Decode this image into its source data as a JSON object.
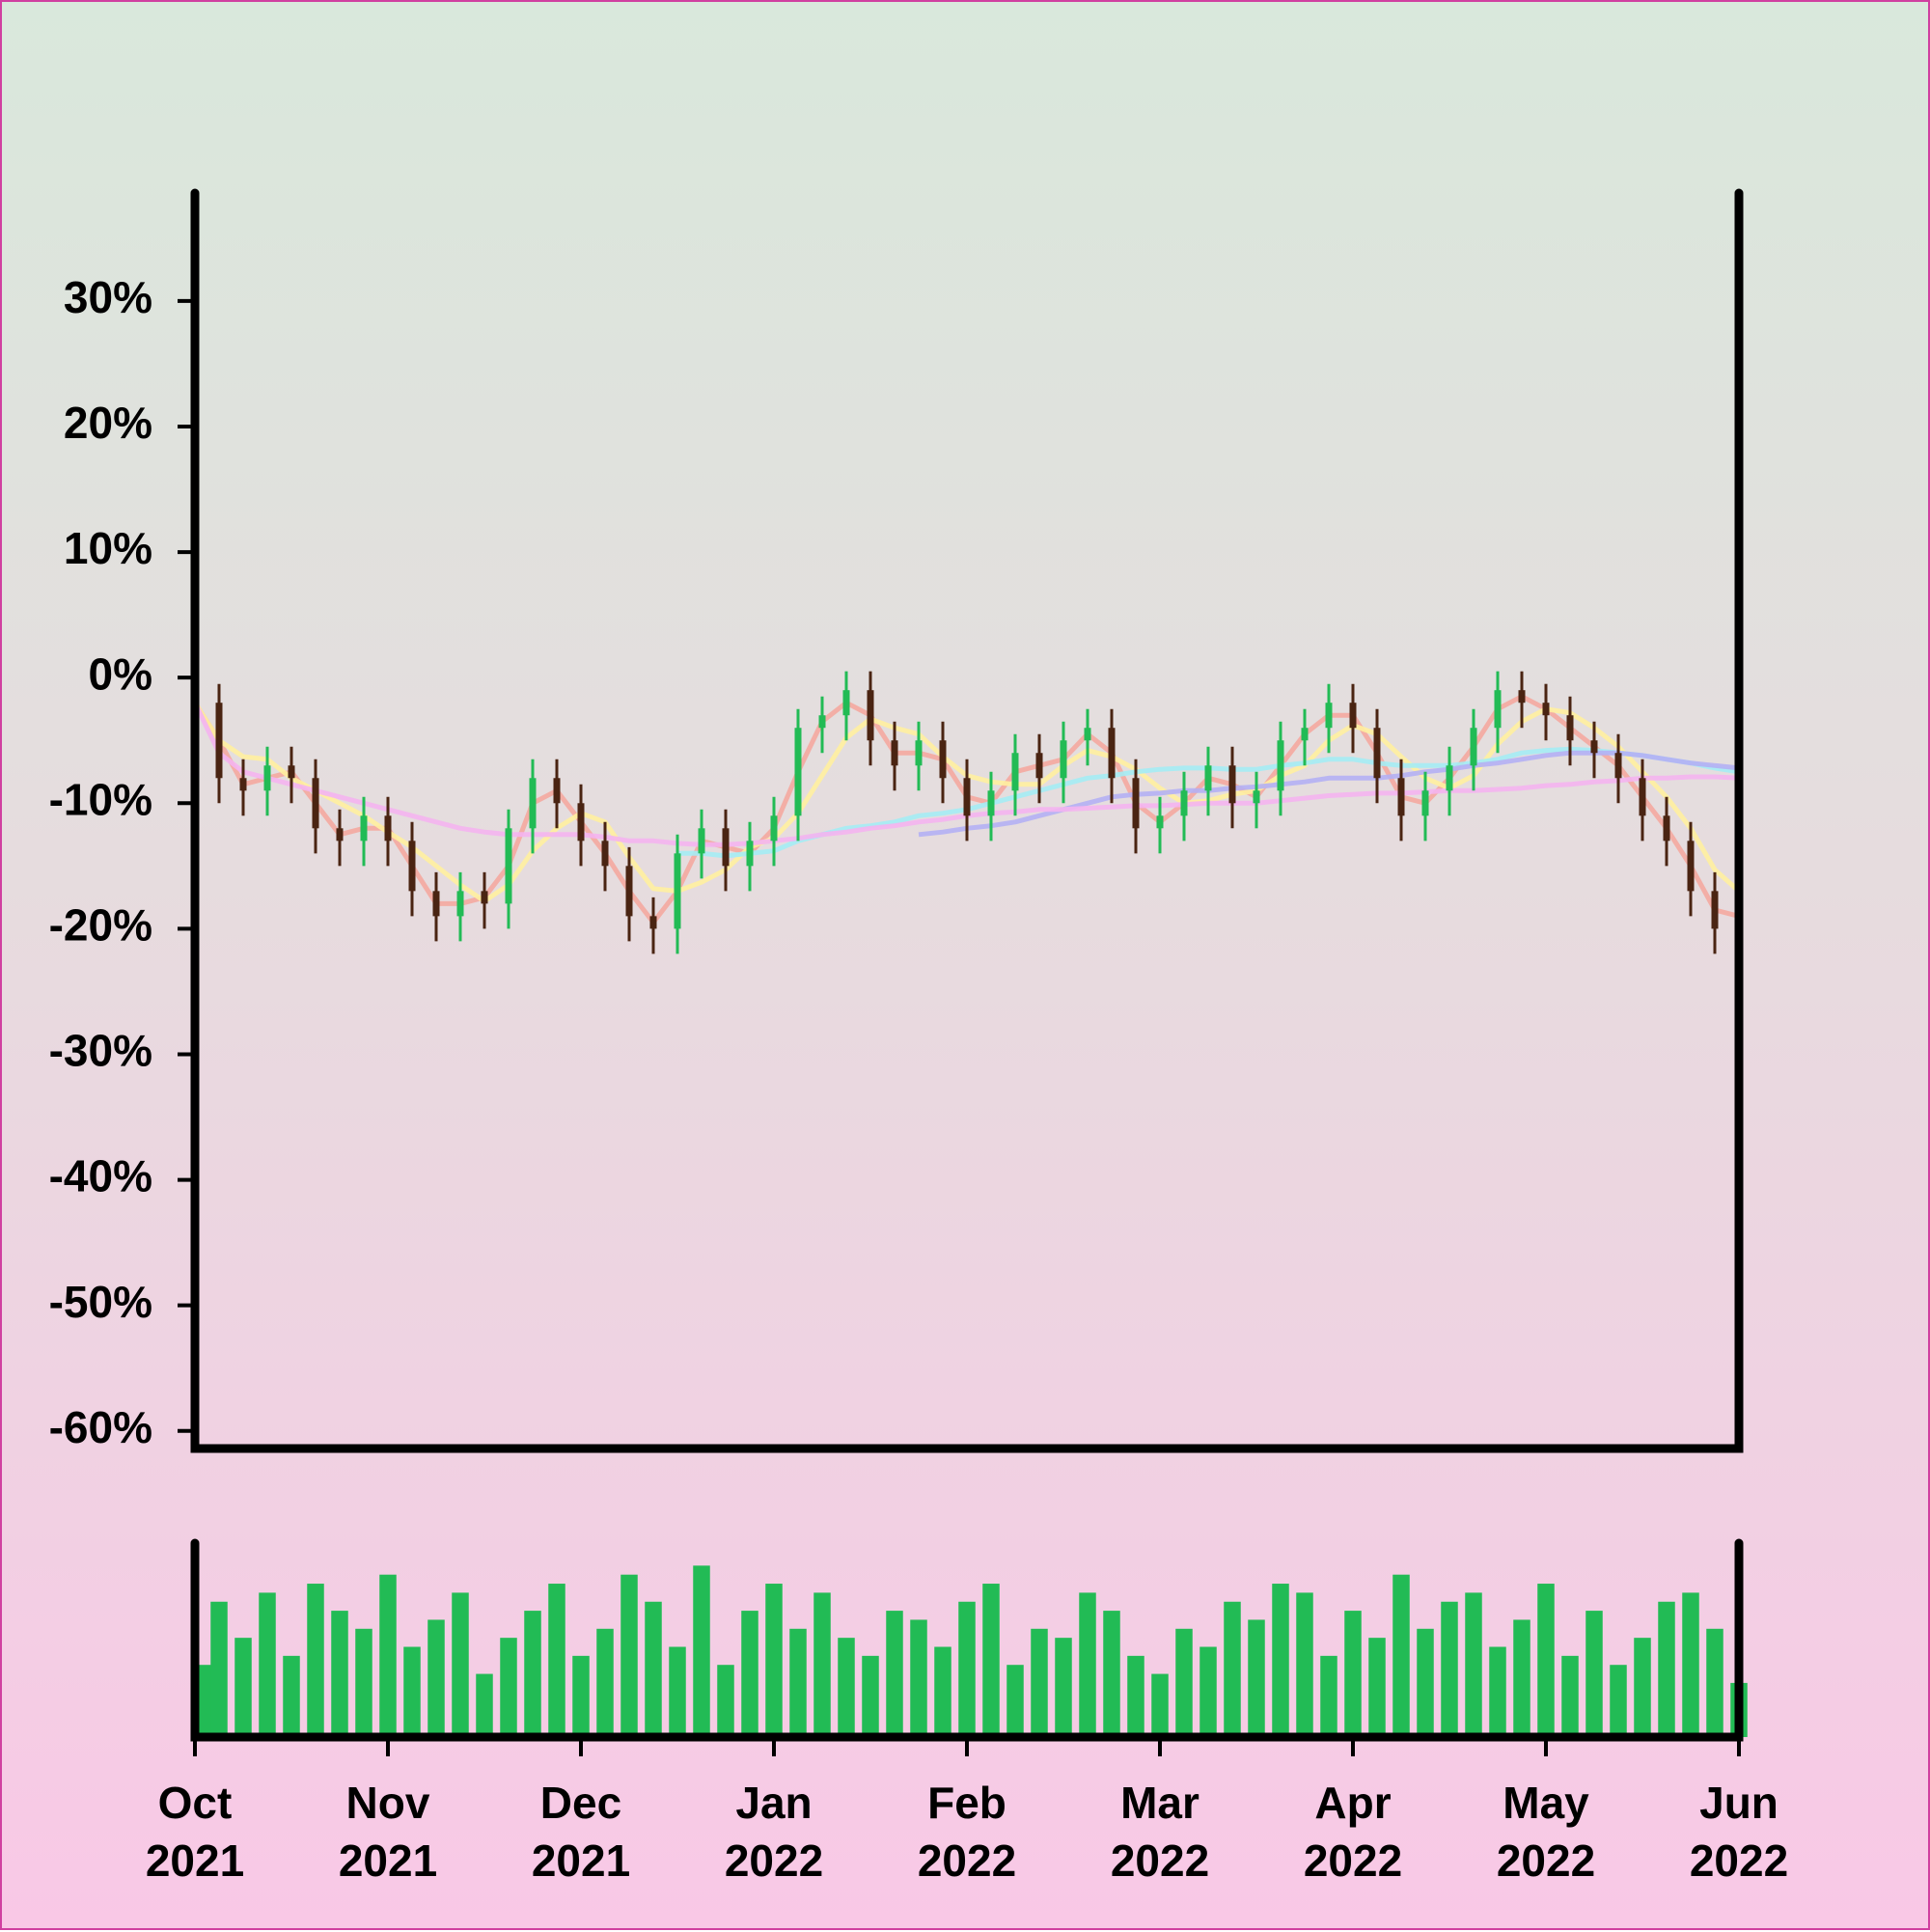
{
  "chart_data": {
    "type": "candlestick",
    "categories": [
      "Oct\n2021",
      null,
      null,
      null,
      null,
      null,
      null,
      null,
      "Nov\n2021",
      null,
      null,
      null,
      null,
      null,
      null,
      null,
      "Dec\n2021",
      null,
      null,
      null,
      null,
      null,
      null,
      null,
      "Jan\n2022",
      null,
      null,
      null,
      null,
      null,
      null,
      null,
      "Feb\n2022",
      null,
      null,
      null,
      null,
      null,
      null,
      null,
      "Mar\n2022",
      null,
      null,
      null,
      null,
      null,
      null,
      null,
      "Apr\n2022",
      null,
      null,
      null,
      null,
      null,
      null,
      null,
      "May\n2022",
      null,
      null,
      null,
      null,
      null,
      null,
      null,
      "Jun\n2022"
    ],
    "open": [
      -1,
      -2,
      -8,
      -9,
      -7,
      -8,
      -12,
      -13,
      -11,
      -13,
      -17,
      -19,
      -17,
      -18,
      -12,
      -8,
      -10,
      -13,
      -15,
      -19,
      -20,
      -14,
      -12,
      -15,
      -13,
      -11,
      -4,
      -3,
      -1,
      -5,
      -7,
      -5,
      -8,
      -11,
      -9,
      -6,
      -8,
      -5,
      -4,
      -8,
      -12,
      -11,
      -9,
      -7,
      -10,
      -9,
      -5,
      -4,
      -2,
      -4,
      -8,
      -11,
      -9,
      -7,
      -4,
      -1,
      -2,
      -3,
      -5,
      -6,
      -8,
      -11,
      -13,
      -17,
      -20
    ],
    "high": [
      0.5,
      -0.5,
      -6.5,
      -5.5,
      -5.5,
      -6.5,
      -10.5,
      -9.5,
      -9.5,
      -11.5,
      -15.5,
      -15.5,
      -15.5,
      -10.5,
      -6.5,
      -6.5,
      -8.5,
      -11.5,
      -13.5,
      -17.5,
      -12.5,
      -10.5,
      -10.5,
      -11.5,
      -9.5,
      -2.5,
      -1.5,
      0.5,
      0.5,
      -3.5,
      -3.5,
      -3.5,
      -6.5,
      -7.5,
      -4.5,
      -4.5,
      -3.5,
      -2.5,
      -2.5,
      -6.5,
      -9.5,
      -7.5,
      -5.5,
      -5.5,
      -7.5,
      -3.5,
      -2.5,
      -0.5,
      -0.5,
      -2.5,
      -6.5,
      -7.5,
      -5.5,
      -2.5,
      0.5,
      0.5,
      -0.5,
      -1.5,
      -3.5,
      -4.5,
      -6.5,
      -9.5,
      -11.5,
      -15.5,
      -16.5
    ],
    "low": [
      -4,
      -10,
      -11,
      -11,
      -10,
      -14,
      -15,
      -15,
      -15,
      -19,
      -21,
      -21,
      -20,
      -20,
      -14,
      -12,
      -15,
      -17,
      -21,
      -22,
      -22,
      -16,
      -17,
      -17,
      -15,
      -13,
      -6,
      -5,
      -7,
      -9,
      -9,
      -10,
      -13,
      -13,
      -11,
      -10,
      -10,
      -7,
      -10,
      -14,
      -14,
      -13,
      -11,
      -12,
      -12,
      -11,
      -7,
      -6,
      -6,
      -10,
      -13,
      -13,
      -11,
      -9,
      -6,
      -4,
      -5,
      -7,
      -8,
      -10,
      -13,
      -15,
      -19,
      -22,
      -22
    ],
    "close": [
      -2,
      -8,
      -9,
      -7,
      -8,
      -12,
      -13,
      -11,
      -13,
      -17,
      -19,
      -17,
      -18,
      -12,
      -8,
      -10,
      -13,
      -15,
      -19,
      -20,
      -14,
      -12,
      -15,
      -13,
      -11,
      -4,
      -3,
      -1,
      -5,
      -7,
      -5,
      -8,
      -11,
      -9,
      -6,
      -8,
      -5,
      -4,
      -8,
      -12,
      -11,
      -9,
      -7,
      -10,
      -9,
      -5,
      -4,
      -2,
      -4,
      -8,
      -11,
      -9,
      -7,
      -4,
      -1,
      -2,
      -3,
      -5,
      -6,
      -8,
      -11,
      -13,
      -17,
      -20,
      -18
    ],
    "up_color": "#22bb55",
    "down_color": "#4a2412",
    "moving_averages": [
      {
        "color": "#f4a8a0",
        "values": [
          -2,
          -5,
          -8.5,
          -8,
          -7.5,
          -10,
          -12.5,
          -12,
          -12,
          -15,
          -18,
          -18,
          -17.5,
          -15,
          -10,
          -9,
          -11.5,
          -14,
          -17,
          -19.5,
          -17,
          -13,
          -13.5,
          -14,
          -12,
          -7.5,
          -3.5,
          -2,
          -3,
          -6,
          -6,
          -6.5,
          -9.5,
          -10,
          -7.5,
          -7,
          -6.5,
          -4.5,
          -6,
          -10,
          -11.5,
          -10,
          -8,
          -8.5,
          -9.5,
          -7,
          -4.5,
          -3,
          -3,
          -6,
          -9.5,
          -10,
          -8,
          -5.5,
          -2.5,
          -1.5,
          -2.5,
          -4,
          -5.5,
          -7,
          -9.5,
          -12,
          -15,
          -18.5,
          -19
        ]
      },
      {
        "color": "#fff0a0",
        "values": [
          -2,
          -5,
          -6.3,
          -6.5,
          -8,
          -9,
          -10,
          -11,
          -12.3,
          -13.5,
          -15,
          -16.5,
          -17.8,
          -16.5,
          -13.8,
          -12,
          -10.8,
          -11.5,
          -14.3,
          -16.8,
          -17,
          -16.3,
          -15.3,
          -13.5,
          -12.8,
          -10.8,
          -7.8,
          -4.8,
          -3.3,
          -4,
          -4.5,
          -6.3,
          -7.8,
          -8.3,
          -8.5,
          -8.5,
          -7,
          -5.8,
          -6.3,
          -7.3,
          -8.8,
          -10,
          -9.8,
          -9.3,
          -9,
          -7.8,
          -7,
          -5,
          -3.8,
          -4.5,
          -6.3,
          -8,
          -8.8,
          -7.8,
          -5.3,
          -3.5,
          -2.5,
          -2.8,
          -4,
          -5.5,
          -7.5,
          -9.5,
          -12,
          -15.3,
          -17
        ]
      },
      {
        "color": "#a4ecf4",
        "values": [
          null,
          null,
          null,
          null,
          null,
          null,
          null,
          null,
          null,
          null,
          null,
          null,
          null,
          null,
          null,
          null,
          null,
          null,
          null,
          null,
          -14,
          -14,
          -14.2,
          -14,
          -13.8,
          -13,
          -12.5,
          -12,
          -11.8,
          -11.5,
          -11,
          -10.8,
          -10.5,
          -10,
          -9.5,
          -9,
          -8.5,
          -8,
          -7.8,
          -7.5,
          -7.3,
          -7.2,
          -7.2,
          -7.3,
          -7.3,
          -7,
          -6.8,
          -6.5,
          -6.5,
          -6.8,
          -7,
          -7,
          -7,
          -6.8,
          -6.5,
          -6,
          -5.8,
          -5.7,
          -5.8,
          -6,
          -6.2,
          -6.5,
          -6.8,
          -7.2,
          -7.5
        ]
      },
      {
        "color": "#b4b0f4",
        "values": [
          null,
          null,
          null,
          null,
          null,
          null,
          null,
          null,
          null,
          null,
          null,
          null,
          null,
          null,
          null,
          null,
          null,
          null,
          null,
          null,
          null,
          null,
          null,
          null,
          null,
          null,
          null,
          null,
          null,
          null,
          -12.5,
          -12.3,
          -12,
          -11.8,
          -11.5,
          -11,
          -10.5,
          -10,
          -9.5,
          -9.3,
          -9.2,
          -9,
          -9,
          -8.8,
          -8.7,
          -8.5,
          -8.3,
          -8,
          -8,
          -8,
          -7.8,
          -7.5,
          -7.3,
          -7,
          -6.8,
          -6.5,
          -6.2,
          -6,
          -6,
          -6,
          -6.2,
          -6.5,
          -6.8,
          -7,
          -7.2
        ]
      },
      {
        "color": "#f4b4f0",
        "values": [
          -2,
          -6,
          -7.5,
          -8,
          -8.5,
          -9,
          -9.5,
          -10,
          -10.5,
          -11,
          -11.5,
          -12,
          -12.3,
          -12.5,
          -12.5,
          -12.5,
          -12.5,
          -12.7,
          -13,
          -13,
          -13.2,
          -13.3,
          -13.3,
          -13.2,
          -13,
          -12.8,
          -12.5,
          -12.3,
          -12,
          -11.8,
          -11.5,
          -11.3,
          -11,
          -10.8,
          -10.7,
          -10.5,
          -10.5,
          -10.4,
          -10.3,
          -10.2,
          -10.2,
          -10.1,
          -10,
          -10,
          -10,
          -9.8,
          -9.6,
          -9.4,
          -9.3,
          -9.2,
          -9.2,
          -9.1,
          -9,
          -9,
          -8.9,
          -8.8,
          -8.6,
          -8.5,
          -8.3,
          -8.2,
          -8,
          -8,
          -7.9,
          -7.9,
          -8
        ]
      }
    ],
    "ylim": [
      -61.4,
      38.6
    ],
    "yticks": [
      {
        "value": 30,
        "label": "30%"
      },
      {
        "value": 20,
        "label": "20%"
      },
      {
        "value": 10,
        "label": "10%"
      },
      {
        "value": 0,
        "label": "0%"
      },
      {
        "value": -10,
        "label": "-10%"
      },
      {
        "value": -20,
        "label": "-20%"
      },
      {
        "value": -30,
        "label": "-30%"
      },
      {
        "value": -40,
        "label": "-40%"
      },
      {
        "value": -50,
        "label": "-50%"
      },
      {
        "value": -60,
        "label": "-60%"
      }
    ],
    "volume": {
      "color": "#22bb55",
      "ylim": [
        0,
        100
      ],
      "values": [
        40,
        75,
        55,
        80,
        45,
        85,
        70,
        60,
        90,
        50,
        65,
        80,
        35,
        55,
        70,
        85,
        45,
        60,
        90,
        75,
        50,
        95,
        40,
        70,
        85,
        60,
        80,
        55,
        45,
        70,
        65,
        50,
        75,
        85,
        40,
        60,
        55,
        80,
        70,
        45,
        35,
        60,
        50,
        75,
        65,
        85,
        80,
        45,
        70,
        55,
        90,
        60,
        75,
        80,
        50,
        65,
        85,
        45,
        70,
        40,
        55,
        75,
        80,
        60,
        30
      ]
    }
  }
}
